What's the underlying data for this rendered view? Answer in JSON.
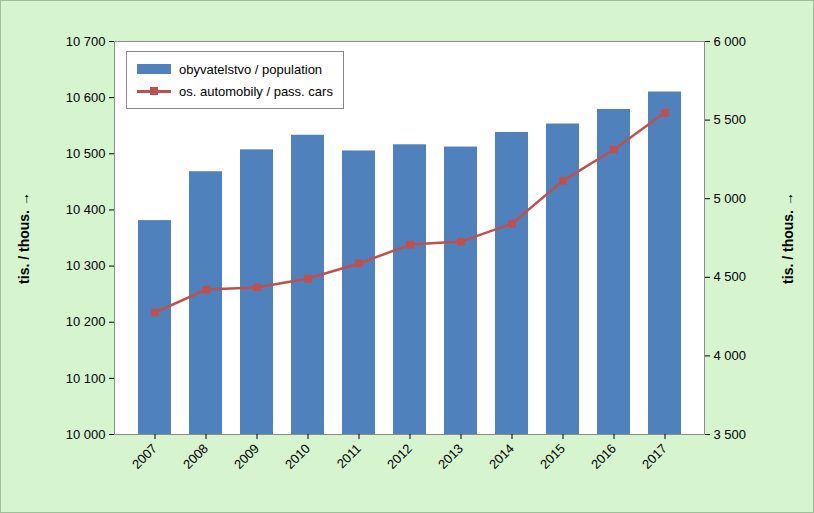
{
  "chart_data": {
    "type": "bar",
    "categories": [
      "2007",
      "2008",
      "2009",
      "2010",
      "2011",
      "2012",
      "2013",
      "2014",
      "2015",
      "2016",
      "2017"
    ],
    "series": [
      {
        "name": "obyvatelstvo / population",
        "type": "bar",
        "color": "#4f81bd",
        "values": [
          10381,
          10468,
          10507,
          10533,
          10505,
          10516,
          10512,
          10538,
          10553,
          10579,
          10610
        ]
      },
      {
        "name": "os. automobily / pass. cars",
        "type": "line",
        "color": "#c0504d",
        "marker": "square",
        "axis": "y2",
        "values": [
          4276,
          4422,
          4435,
          4492,
          4588,
          4708,
          4727,
          4842,
          5115,
          5313,
          5548
        ]
      }
    ],
    "ylabel": "tis. / thous.",
    "y2label": "tis. / thous.",
    "ylim": [
      10000,
      10700
    ],
    "yticks": [
      {
        "value": 10000,
        "label": "10 000"
      },
      {
        "value": 10100,
        "label": "10 100"
      },
      {
        "value": 10200,
        "label": "10 200"
      },
      {
        "value": 10300,
        "label": "10 300"
      },
      {
        "value": 10400,
        "label": "10 400"
      },
      {
        "value": 10500,
        "label": "10 500"
      },
      {
        "value": 10600,
        "label": "10 600"
      },
      {
        "value": 10700,
        "label": "10 700"
      }
    ],
    "y2lim": [
      3500,
      6000
    ],
    "y2ticks": [
      {
        "value": 3500,
        "label": "3 500"
      },
      {
        "value": 4000,
        "label": "4 000"
      },
      {
        "value": 4500,
        "label": "4 500"
      },
      {
        "value": 5000,
        "label": "5 000"
      },
      {
        "value": 5500,
        "label": "5 500"
      },
      {
        "value": 6000,
        "label": "6 000"
      }
    ],
    "grid": false,
    "legend": "top-left"
  }
}
